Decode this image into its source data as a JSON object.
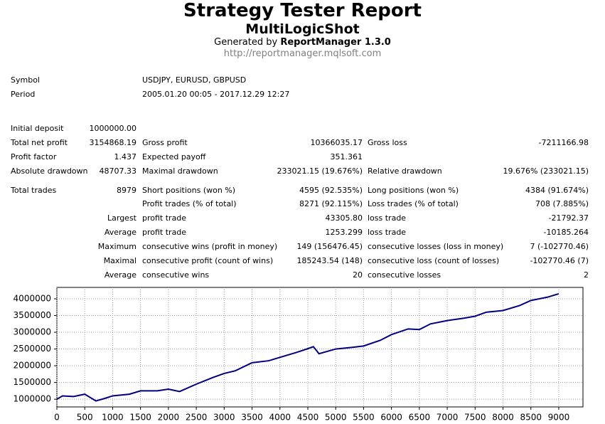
{
  "header": {
    "title": "Strategy Tester Report",
    "subtitle": "MultiLogicShot",
    "generated_prefix": "Generated by",
    "generator": "ReportManager 1.3.0",
    "url": "http://reportmanager.mqlsoft.com"
  },
  "info": {
    "rows": [
      [
        "Symbol",
        "USDJPY, EURUSD, GBPUSD"
      ],
      [
        "Period",
        "2005.01.20 00:05 - 2017.12.29 12:27"
      ]
    ]
  },
  "stats": {
    "rows": [
      [
        "Initial deposit",
        "1000000.00",
        null,
        null,
        null,
        null
      ],
      [
        "Total net profit",
        "3154868.19",
        "Gross profit",
        "10366035.17",
        "Gross loss",
        "-7211166.98"
      ],
      [
        "Profit factor",
        "1.437",
        "Expected payoff",
        "351.361",
        null,
        null
      ],
      [
        "Absolute drawdown",
        "48707.33",
        "Maximal drawdown",
        "233021.15 (19.676%)",
        "Relative drawdown",
        "19.676% (233021.15)"
      ],
      [
        "Total trades",
        "8979",
        "Short positions (won %)",
        "4595 (92.535%)",
        "Long positions (won %)",
        "4384 (91.674%)"
      ],
      [
        null,
        null,
        "Profit trades (% of total)",
        "8271 (92.115%)",
        "Loss trades (% of total)",
        "708 (7.885%)"
      ],
      [
        null,
        "Largest",
        "profit trade",
        "43305.80",
        "loss trade",
        "-21792.37"
      ],
      [
        null,
        "Average",
        "profit trade",
        "1253.299",
        "loss trade",
        "-10185.264"
      ],
      [
        null,
        "Maximum",
        "consecutive wins (profit in money)",
        "149 (156476.45)",
        "consecutive losses (loss in money)",
        "7 (-102770.46)"
      ],
      [
        null,
        "Maximal",
        "consecutive profit (count of wins)",
        "185243.54 (148)",
        "consecutive loss (count of losses)",
        "-102770.46 (7)"
      ],
      [
        null,
        "Average",
        "consecutive wins",
        "20",
        "consecutive losses",
        "2"
      ]
    ]
  },
  "chart_data": {
    "type": "line",
    "x": [
      0,
      100,
      300,
      500,
      600,
      700,
      850,
      1000,
      1300,
      1500,
      1800,
      2000,
      2200,
      2500,
      2800,
      3000,
      3200,
      3500,
      3800,
      4000,
      4300,
      4500,
      4600,
      4700,
      5000,
      5300,
      5500,
      5800,
      6000,
      6300,
      6500,
      6700,
      7000,
      7300,
      7500,
      7700,
      8000,
      8300,
      8500,
      8800,
      9000
    ],
    "series": [
      {
        "color": "#000080",
        "values": [
          1000000,
          1100000,
          1080000,
          1150000,
          1050000,
          950000,
          1020000,
          1100000,
          1150000,
          1250000,
          1250000,
          1300000,
          1230000,
          1450000,
          1650000,
          1770000,
          1850000,
          2090000,
          2150000,
          2250000,
          2400000,
          2510000,
          2570000,
          2360000,
          2500000,
          2550000,
          2590000,
          2760000,
          2930000,
          3100000,
          3080000,
          3250000,
          3350000,
          3420000,
          3480000,
          3600000,
          3650000,
          3800000,
          3950000,
          4050000,
          4150000
        ]
      }
    ],
    "xlim": [
      0,
      9434
    ],
    "ylim": [
      770000,
      4340000
    ],
    "xticks": [
      0,
      500,
      1000,
      1500,
      2000,
      2500,
      3000,
      3500,
      4000,
      4500,
      5000,
      5500,
      6000,
      6500,
      7000,
      7500,
      8000,
      8500,
      9000
    ],
    "yticks": [
      1000000,
      1500000,
      2000000,
      2500000,
      3000000,
      3500000,
      4000000
    ],
    "grid": true
  }
}
